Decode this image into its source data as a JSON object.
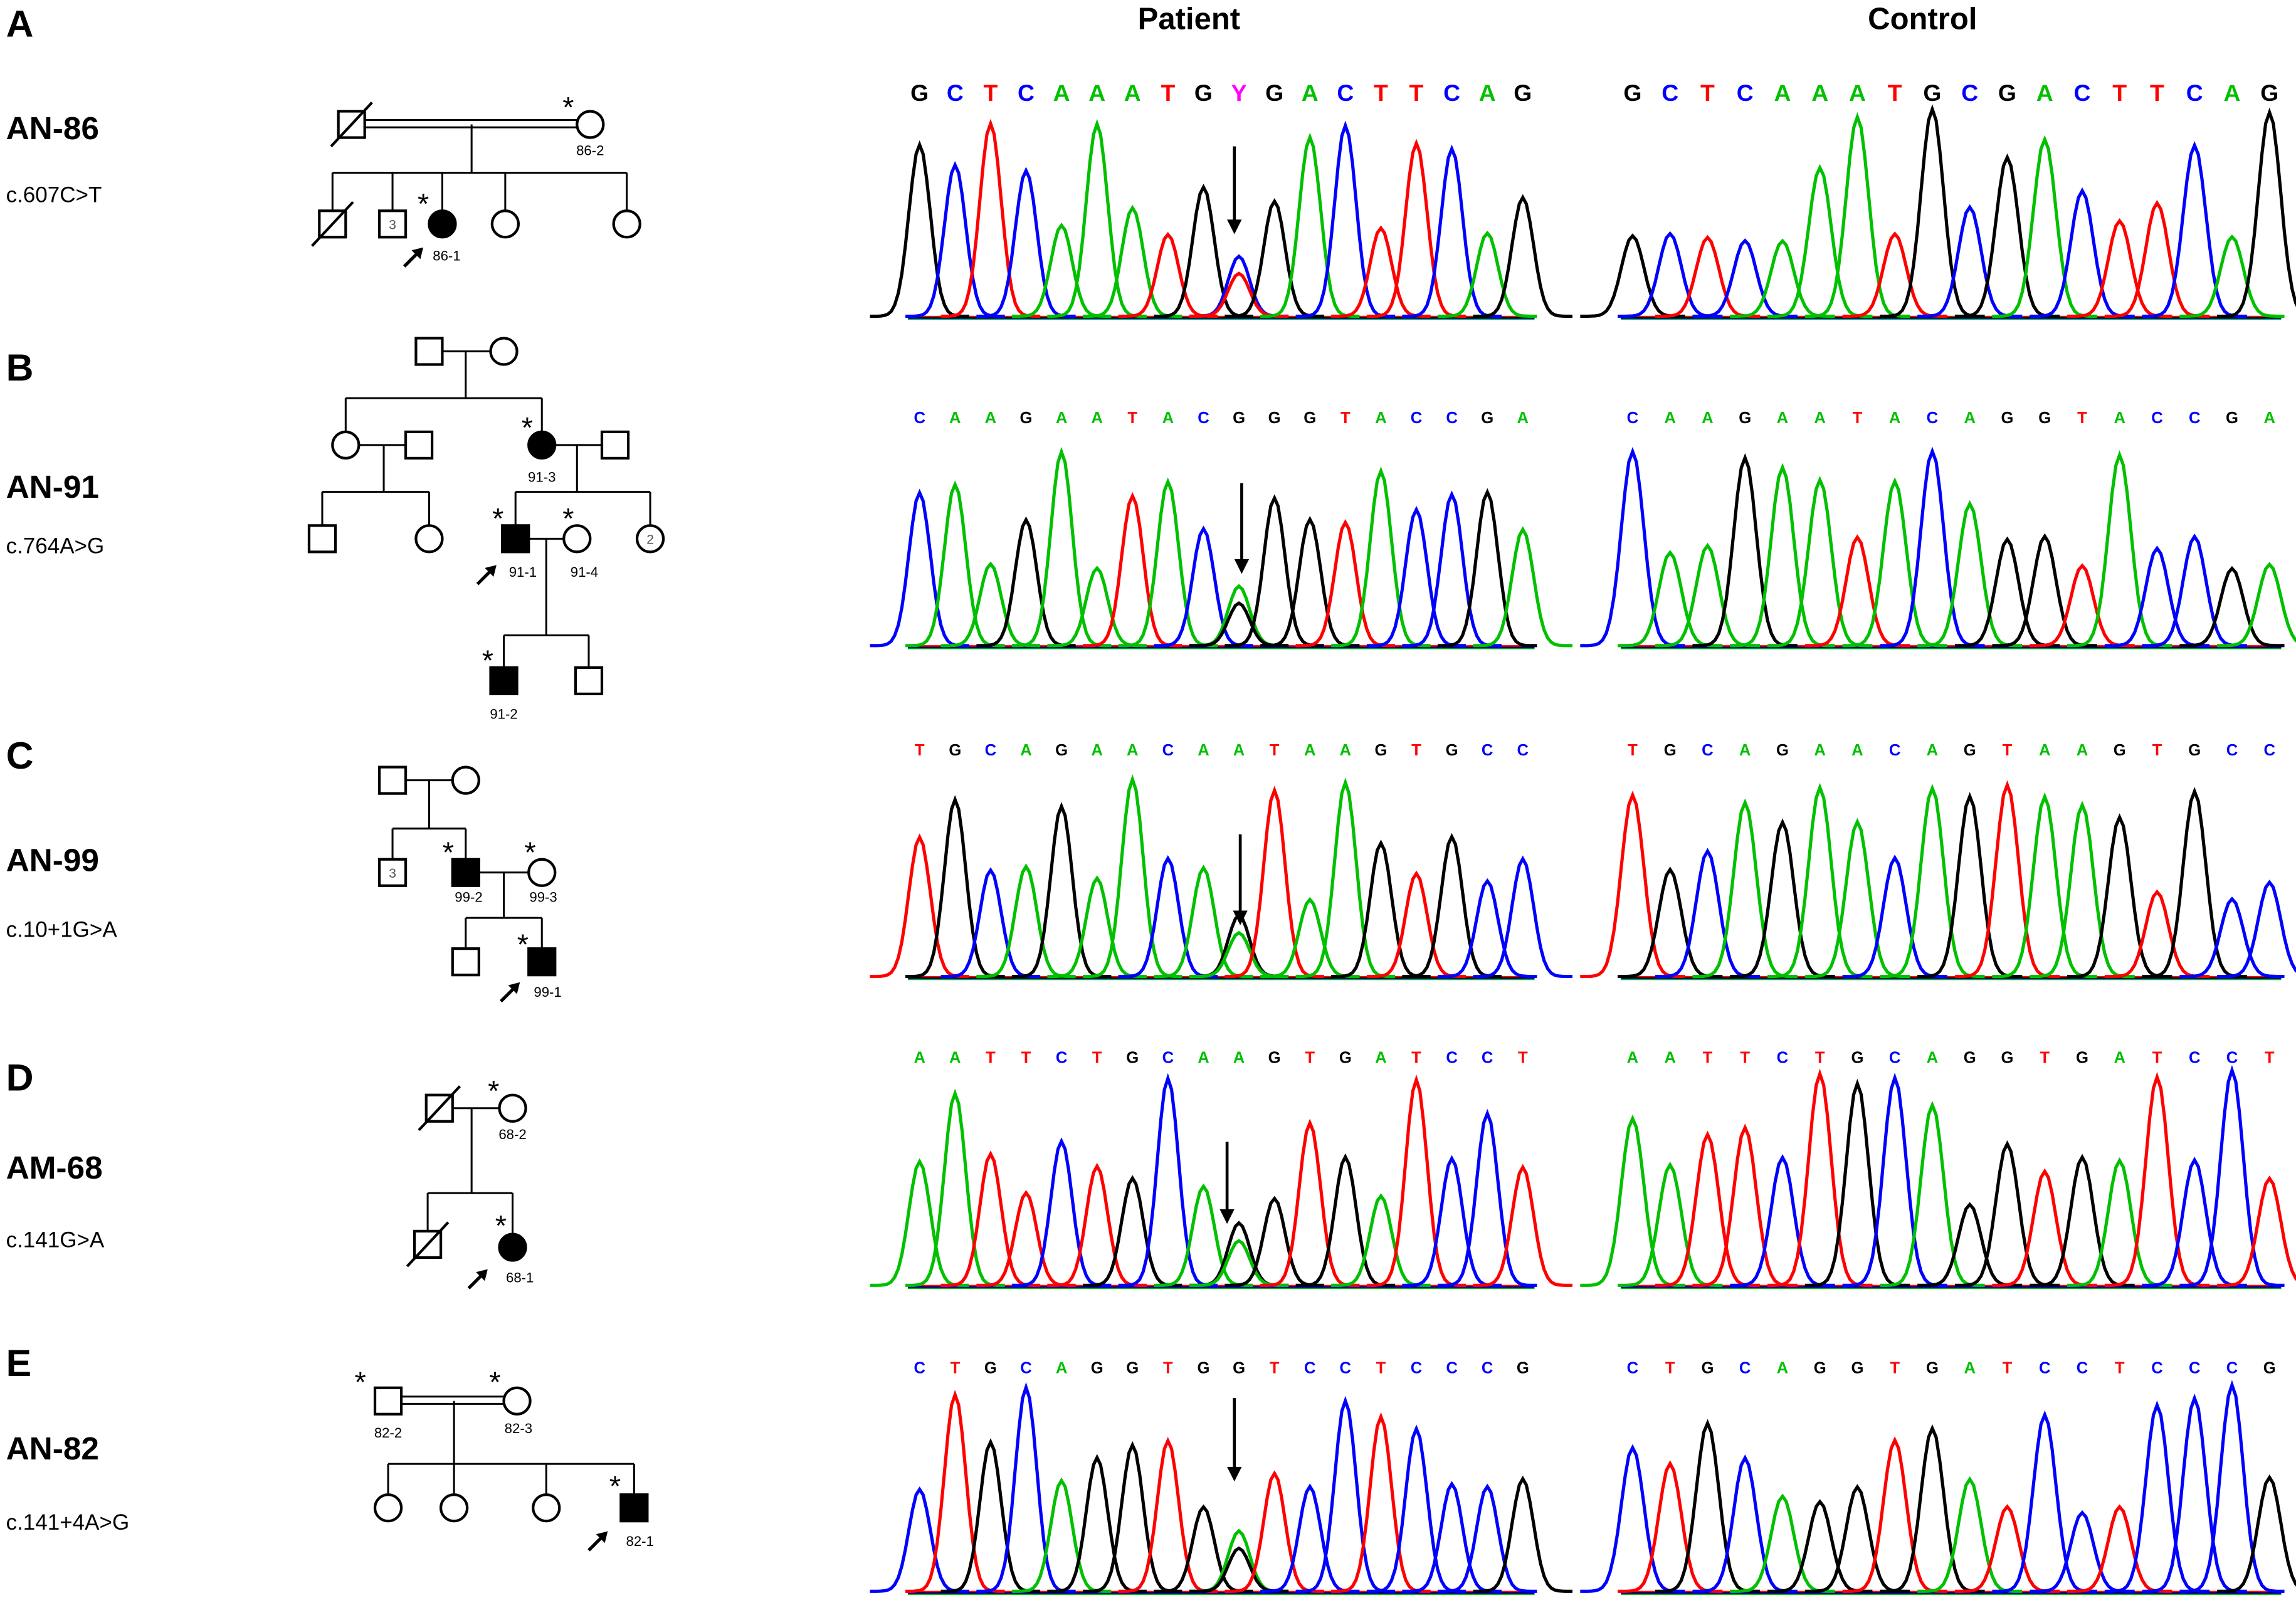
{
  "columns": {
    "patient": "Patient",
    "control": "Control"
  },
  "base_colors": {
    "A": "#00c000",
    "C": "#0000ff",
    "G": "#000000",
    "T": "#ff0000",
    "Y": "#ff00ff"
  },
  "panels": [
    {
      "letter": "A",
      "family": "AN-86",
      "mutation": "c.607C>T",
      "patient_seq": "GCTCAAATGYGACTTCAG",
      "control_seq": "GCTCAAATGCGACTTCAG",
      "mutation_index": 9,
      "het_bases": [
        "C",
        "T"
      ],
      "pedigree": {
        "ids": [
          "86-2",
          "86-1"
        ],
        "sibship_counts": [
          "3"
        ],
        "star": "*"
      }
    },
    {
      "letter": "B",
      "family": "AN-91",
      "mutation": "c.764A>G",
      "patient_seq": "CAAGAATACGGGTACCGA",
      "control_seq": "CAAGAATACAGGTACCGA",
      "mutation_index": 9,
      "het_bases": [
        "A",
        "G"
      ],
      "pedigree": {
        "ids": [
          "91-3",
          "91-1",
          "91-4",
          "91-2"
        ],
        "sibship_counts": [
          "2"
        ],
        "star": "*"
      }
    },
    {
      "letter": "C",
      "family": "AN-99",
      "mutation": "c.10+1G>A",
      "patient_seq": "TGCAGAACAATAAGTGCC",
      "control_seq": "TGCAGAACAGTAAGTGCC",
      "mutation_index": 9,
      "het_bases": [
        "G",
        "A"
      ],
      "pedigree": {
        "ids": [
          "99-2",
          "99-3",
          "99-1"
        ],
        "sibship_counts": [
          "3"
        ],
        "star": "*"
      }
    },
    {
      "letter": "D",
      "family": "AM-68",
      "mutation": "c.141G>A",
      "patient_seq": "AATTCTGCAAGTGATCCT",
      "control_seq": "AATTCTGCAGGTGATCCT",
      "mutation_index": 9,
      "het_bases": [
        "G",
        "A"
      ],
      "pedigree": {
        "ids": [
          "68-2",
          "68-1"
        ],
        "sibship_counts": [],
        "star": "*"
      }
    },
    {
      "letter": "E",
      "family": "AN-82",
      "mutation": "c.141+4A>G",
      "patient_seq": "CTGCAGGTGGTCCTCCCG",
      "control_seq": "CTGCAGGTGATCCTCCCG",
      "mutation_index": 9,
      "het_bases": [
        "A",
        "G"
      ],
      "pedigree": {
        "ids": [
          "82-2",
          "82-3",
          "82-1"
        ],
        "sibship_counts": [],
        "star": "*"
      }
    }
  ]
}
